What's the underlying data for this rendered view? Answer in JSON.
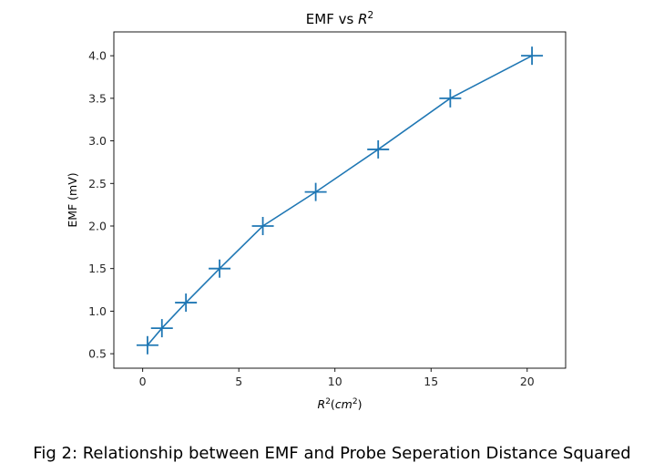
{
  "caption": "Fig 2: Relationship between EMF and Probe Seperation Distance Squared",
  "chart_data": {
    "type": "line",
    "title": "EMF vs R²",
    "title_base": "EMF vs ",
    "title_math": {
      "symbol": "R",
      "superscript": "2"
    },
    "xlabel": "R²(cm²)",
    "ylabel": "EMF (mV)",
    "xlim": [
      -1.5,
      22
    ],
    "ylim": [
      0.33,
      4.28
    ],
    "xticks": [
      0,
      5,
      10,
      15,
      20
    ],
    "yticks": [
      0.5,
      1.0,
      1.5,
      2.0,
      2.5,
      3.0,
      3.5,
      4.0
    ],
    "grid": false,
    "marker": "+",
    "color": "#1f77b4",
    "series": [
      {
        "x": [
          0.25,
          1.0,
          2.25,
          4.0,
          6.25,
          9.0,
          12.25,
          16.0,
          20.25
        ],
        "y": [
          0.6,
          0.8,
          1.1,
          1.5,
          2.0,
          2.4,
          2.9,
          3.5,
          4.0
        ]
      }
    ]
  }
}
